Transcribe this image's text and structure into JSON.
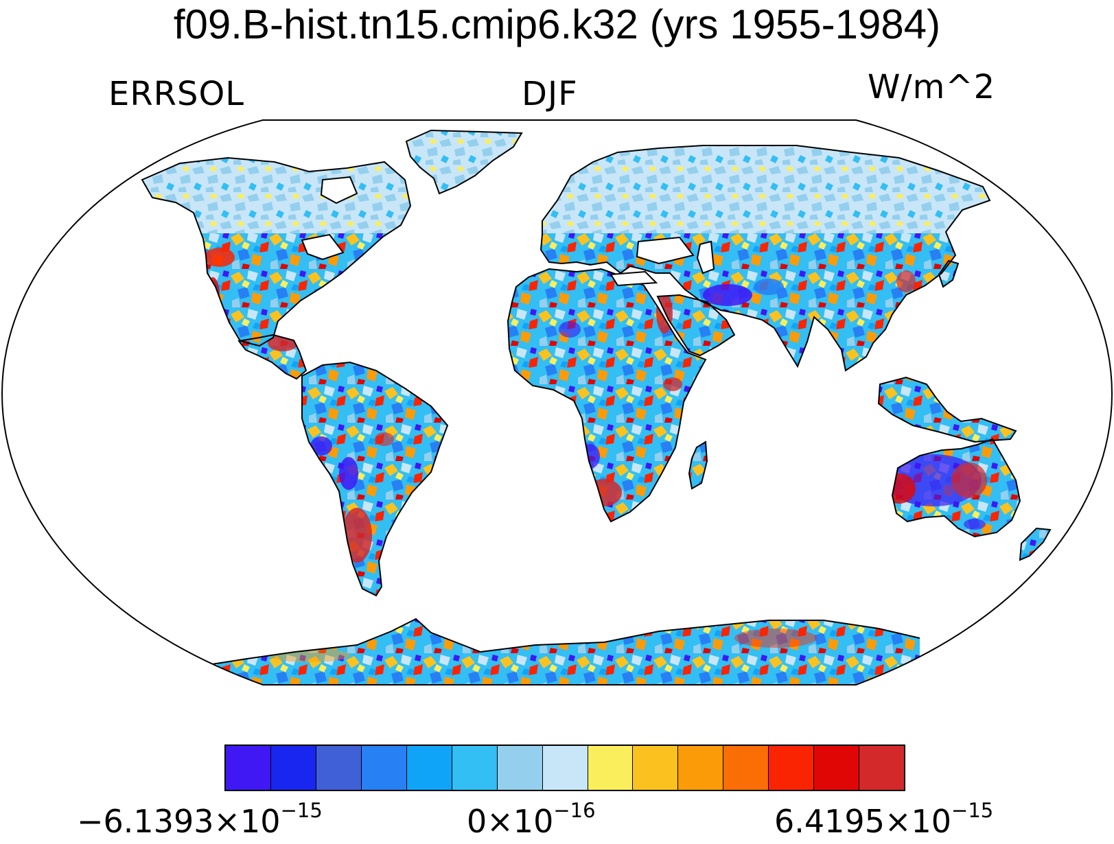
{
  "title": "f09.B-hist.tn15.cmip6.k32 (yrs 1955-1984)",
  "left_string": "ERRSOL",
  "center_string": "DJF",
  "right_string": "W/m^2",
  "colorbar": {
    "colors": [
      "#3f18f4",
      "#1926ef",
      "#4060d8",
      "#2780f4",
      "#0fa4f8",
      "#33bef4",
      "#94cfee",
      "#c8e6f7",
      "#fbee5d",
      "#fbc21f",
      "#fb9b08",
      "#fb6d05",
      "#fb2402",
      "#e00606",
      "#d3292b"
    ],
    "labels": {
      "min": {
        "mantissa": "−6.1393×10",
        "exponent": "−15"
      },
      "mid": {
        "mantissa": "0×10",
        "exponent": "−16"
      },
      "max": {
        "mantissa": "6.4195×10",
        "exponent": "−15"
      }
    }
  },
  "map": {
    "projection": "Robinson (global)",
    "variable": "ERRSOL",
    "season": "DJF",
    "land_only_field": true
  }
}
